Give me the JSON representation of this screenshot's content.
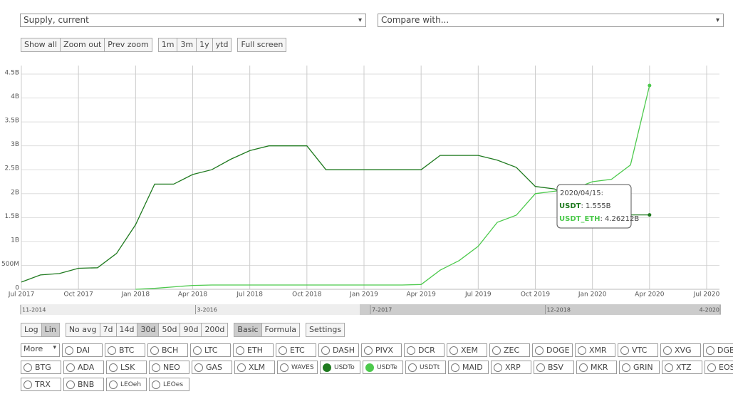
{
  "selects": [
    "Supply, current",
    "Compare with..."
  ],
  "zoom_groups": [
    [
      "Show all",
      "Zoom out",
      "Prev zoom"
    ],
    [
      "1m",
      "3m",
      "1y",
      "ytd"
    ],
    [
      "Full screen"
    ]
  ],
  "chart_data": {
    "type": "line",
    "x": [
      "2017-07",
      "2017-08",
      "2017-09",
      "2017-10",
      "2017-11",
      "2017-12",
      "2018-01",
      "2018-02",
      "2018-03",
      "2018-04",
      "2018-05",
      "2018-06",
      "2018-07",
      "2018-08",
      "2018-09",
      "2018-10",
      "2018-11",
      "2018-12",
      "2019-01",
      "2019-02",
      "2019-03",
      "2019-04",
      "2019-05",
      "2019-06",
      "2019-07",
      "2019-08",
      "2019-09",
      "2019-10",
      "2019-11",
      "2019-12",
      "2020-01",
      "2020-02",
      "2020-03",
      "2020-04"
    ],
    "series": [
      {
        "name": "USDT",
        "color": "#1f7a1f",
        "values": [
          150000000,
          300000000,
          330000000,
          440000000,
          450000000,
          750000000,
          1350000000,
          2200000000,
          2200000000,
          2400000000,
          2500000000,
          2720000000,
          2900000000,
          3000000000,
          3000000000,
          3000000000,
          2500000000,
          2500000000,
          2500000000,
          2500000000,
          2500000000,
          2500000000,
          2800000000,
          2800000000,
          2800000000,
          2700000000,
          2550000000,
          2150000000,
          2100000000,
          1900000000,
          1700000000,
          1555000000,
          1555000000,
          1555000000
        ]
      },
      {
        "name": "USDT_ETH",
        "color": "#4cc94c",
        "values": [
          null,
          null,
          null,
          null,
          null,
          null,
          0,
          20000000,
          50000000,
          80000000,
          90000000,
          90000000,
          90000000,
          90000000,
          90000000,
          90000000,
          90000000,
          90000000,
          90000000,
          90000000,
          90000000,
          100000000,
          400000000,
          600000000,
          900000000,
          1400000000,
          1550000000,
          2000000000,
          2050000000,
          2100000000,
          2250000000,
          2300000000,
          2600000000,
          4262120000
        ]
      }
    ],
    "xlim": [
      "2017-07",
      "2020-07"
    ],
    "xticks": [
      {
        "value": "2017-07",
        "label": "Jul 2017"
      },
      {
        "value": "2017-10",
        "label": "Oct 2017"
      },
      {
        "value": "2018-01",
        "label": "Jan 2018"
      },
      {
        "value": "2018-04",
        "label": "Apr 2018"
      },
      {
        "value": "2018-07",
        "label": "Jul 2018"
      },
      {
        "value": "2018-10",
        "label": "Oct 2018"
      },
      {
        "value": "2019-01",
        "label": "Jan 2019"
      },
      {
        "value": "2019-04",
        "label": "Apr 2019"
      },
      {
        "value": "2019-07",
        "label": "Jul 2019"
      },
      {
        "value": "2019-10",
        "label": "Oct 2019"
      },
      {
        "value": "2020-01",
        "label": "Jan 2020"
      },
      {
        "value": "2020-04",
        "label": "Apr 2020"
      },
      {
        "value": "2020-07",
        "label": "Jul 2020"
      }
    ],
    "ylim": [
      0,
      4500000000
    ],
    "yticks": [
      0,
      {
        "value": 500000000,
        "label": "500M"
      },
      {
        "value": 1000000000,
        "label": "1B"
      },
      {
        "value": 1500000000,
        "label": "1.5B"
      },
      {
        "value": 2000000000,
        "label": "2B"
      },
      {
        "value": 2500000000,
        "label": "2.5B"
      },
      {
        "value": 3000000000,
        "label": "3B"
      },
      {
        "value": 3500000000,
        "label": "3.5B"
      },
      {
        "value": 4000000000,
        "label": "4B"
      },
      {
        "value": 4500000000,
        "label": "4.5B"
      }
    ],
    "grid": true,
    "tooltip": {
      "date": "2020/04/15:",
      "values": [
        ": 1.555B",
        ": 4.26212B"
      ]
    },
    "navigator": [
      "11-2014",
      "3-2016",
      "7-2017",
      "12-2018",
      "4-2020"
    ]
  },
  "option_groups": [
    {
      "buttons": [
        "Log",
        "Lin"
      ],
      "active": 1
    },
    {
      "buttons": [
        "No avg",
        "7d",
        "14d",
        "30d",
        "50d",
        "90d",
        "200d"
      ],
      "active": 3
    },
    {
      "buttons": [
        "Basic",
        "Formula"
      ],
      "active": 0
    },
    {
      "buttons": [
        "Settings"
      ]
    }
  ],
  "more_select": "More",
  "coins": [
    [
      {
        "label": "DAI"
      },
      {
        "label": "BTC"
      },
      {
        "label": "BCH"
      },
      {
        "label": "LTC"
      },
      {
        "label": "ETH"
      },
      {
        "label": "ETC"
      },
      {
        "label": "DASH"
      },
      {
        "label": "PIVX"
      },
      {
        "label": "DCR"
      },
      {
        "label": "XEM"
      },
      {
        "label": "ZEC"
      },
      {
        "label": "DOGE"
      },
      {
        "label": "XMR"
      },
      {
        "label": "VTC"
      },
      {
        "label": "XVG"
      },
      {
        "label": "DGB"
      }
    ],
    [
      {
        "label": "BTG"
      },
      {
        "label": "ADA"
      },
      {
        "label": "LSK"
      },
      {
        "label": "NEO"
      },
      {
        "label": "GAS"
      },
      {
        "label": "XLM"
      },
      {
        "label": "WAVES"
      },
      {
        "label": "USDTo",
        "color": "#1f7a1f"
      },
      {
        "label": "USDTe",
        "color": "#4cc94c"
      },
      {
        "label": "USDTt"
      },
      {
        "label": "MAID"
      },
      {
        "label": "XRP"
      },
      {
        "label": "BSV"
      },
      {
        "label": "MKR"
      },
      {
        "label": "GRIN"
      },
      {
        "label": "XTZ"
      },
      {
        "label": "EOS"
      }
    ],
    [
      {
        "label": "TRX"
      },
      {
        "label": "BNB"
      },
      {
        "label": "LEOeh"
      },
      {
        "label": "LEOes"
      }
    ]
  ]
}
